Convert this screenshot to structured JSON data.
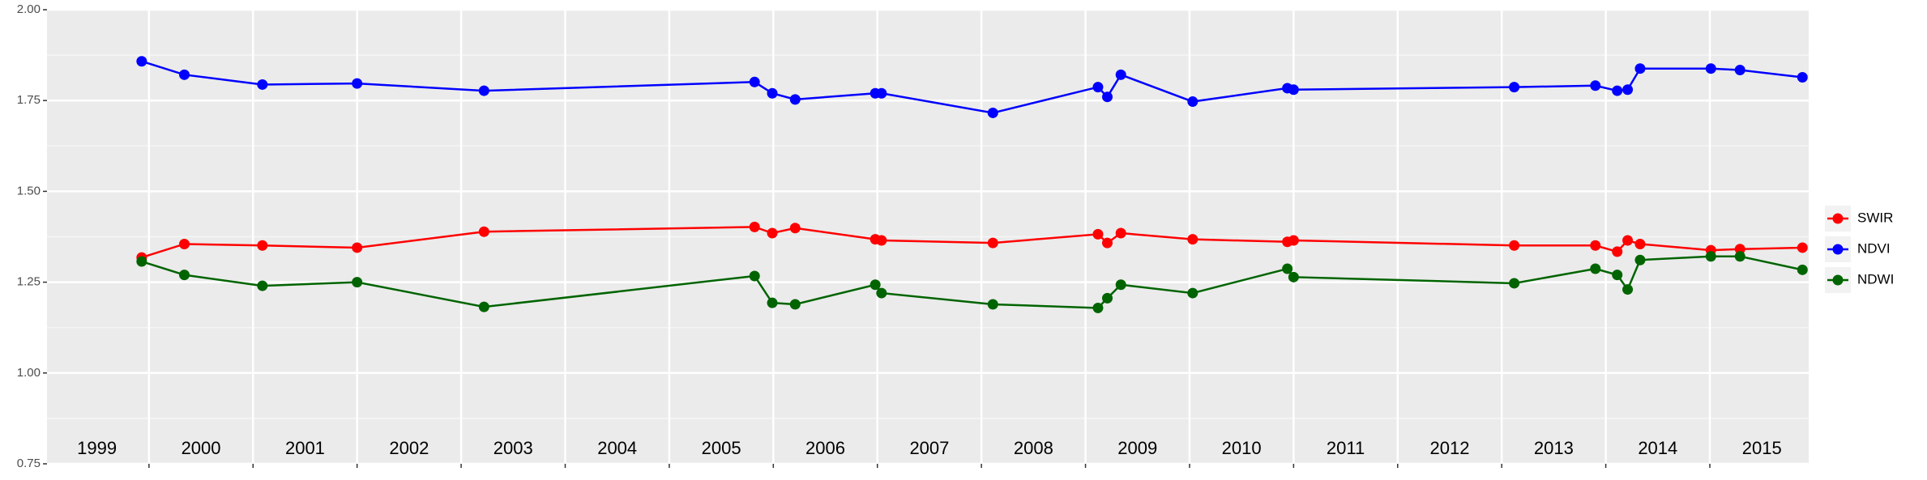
{
  "chart_data": {
    "type": "line",
    "x": [
      1999.93,
      2000.34,
      2001.09,
      2002.0,
      2003.22,
      2005.82,
      2005.99,
      2006.21,
      2006.98,
      2007.04,
      2008.11,
      2009.12,
      2009.21,
      2009.34,
      2010.03,
      2010.94,
      2011.0,
      2013.12,
      2013.9,
      2014.11,
      2014.21,
      2014.33,
      2015.01,
      2015.29,
      2015.89
    ],
    "series": [
      {
        "name": "SWIR",
        "color": "#ff0000",
        "values": [
          1.318,
          1.355,
          1.351,
          1.345,
          1.389,
          1.402,
          1.385,
          1.399,
          1.368,
          1.365,
          1.358,
          1.382,
          1.358,
          1.385,
          1.368,
          1.361,
          1.365,
          1.351,
          1.351,
          1.334,
          1.365,
          1.355,
          1.338,
          1.341,
          1.345
        ]
      },
      {
        "name": "NDVI",
        "color": "#0000ff",
        "values": [
          1.858,
          1.821,
          1.794,
          1.797,
          1.777,
          1.801,
          1.77,
          1.753,
          1.77,
          1.77,
          1.716,
          1.787,
          1.76,
          1.821,
          1.747,
          1.784,
          1.78,
          1.787,
          1.791,
          1.777,
          1.78,
          1.838,
          1.838,
          1.834,
          1.814
        ]
      },
      {
        "name": "NDWI",
        "color": "#006400",
        "values": [
          1.307,
          1.27,
          1.24,
          1.25,
          1.182,
          1.267,
          1.193,
          1.189,
          1.243,
          1.22,
          1.189,
          1.179,
          1.206,
          1.243,
          1.22,
          1.287,
          1.264,
          1.247,
          1.287,
          1.27,
          1.23,
          1.311,
          1.321,
          1.321,
          1.284
        ]
      }
    ],
    "xlim": [
      1999.02,
      2015.95
    ],
    "xticks": [
      2000,
      2001,
      2002,
      2003,
      2004,
      2005,
      2006,
      2007,
      2008,
      2009,
      2010,
      2011,
      2012,
      2013,
      2014,
      2015
    ],
    "ylim": [
      0.75,
      2.0
    ],
    "yticks": [
      {
        "value": 0.75,
        "label": "0.75"
      },
      {
        "value": 1.0,
        "label": "1.00"
      },
      {
        "value": 1.25,
        "label": "1.25"
      },
      {
        "value": 1.5,
        "label": "1.50"
      },
      {
        "value": 1.75,
        "label": "1.75"
      },
      {
        "value": 2.0,
        "label": "2.00"
      }
    ],
    "annotations": [
      {
        "text": "1999",
        "x": 1999.5
      },
      {
        "text": "2000",
        "x": 2000.5
      },
      {
        "text": "2001",
        "x": 2001.5
      },
      {
        "text": "2002",
        "x": 2002.5
      },
      {
        "text": "2003",
        "x": 2003.5
      },
      {
        "text": "2004",
        "x": 2004.5
      },
      {
        "text": "2005",
        "x": 2005.5
      },
      {
        "text": "2006",
        "x": 2006.5
      },
      {
        "text": "2007",
        "x": 2007.5
      },
      {
        "text": "2008",
        "x": 2008.5
      },
      {
        "text": "2009",
        "x": 2009.5
      },
      {
        "text": "2010",
        "x": 2010.5
      },
      {
        "text": "2011",
        "x": 2011.5
      },
      {
        "text": "2012",
        "x": 2012.5
      },
      {
        "text": "2013",
        "x": 2013.5
      },
      {
        "text": "2014",
        "x": 2014.5
      },
      {
        "text": "2015",
        "x": 2015.5
      }
    ],
    "annotation_y": 0.79,
    "grid": true,
    "legend": "right"
  }
}
